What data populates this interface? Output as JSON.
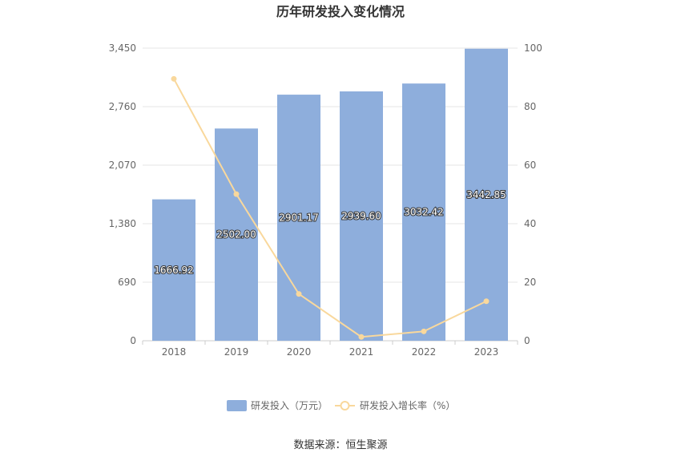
{
  "chart_data": {
    "type": "bar",
    "title": "历年研发投入变化情况",
    "categories": [
      "2018",
      "2019",
      "2020",
      "2021",
      "2022",
      "2023"
    ],
    "series": [
      {
        "name": "研发投入（万元）",
        "type": "bar",
        "axis": "left",
        "color": "#8eaedc",
        "values": [
          1666.92,
          2502.0,
          2901.17,
          2939.6,
          3032.42,
          3442.85
        ],
        "labels": [
          "1666.92",
          "2502.00",
          "2901.17",
          "2939.60",
          "3032.42",
          "3442.85"
        ]
      },
      {
        "name": "研发投入增长率（%）",
        "type": "line",
        "axis": "right",
        "color": "#f9d89c",
        "values": [
          89.5,
          50.1,
          16.0,
          1.3,
          3.2,
          13.5
        ]
      }
    ],
    "y_left": {
      "min": 0,
      "max": 3450,
      "ticks": [
        "0",
        "690",
        "1,380",
        "2,070",
        "2,760",
        "3,450"
      ]
    },
    "y_right": {
      "min": 0,
      "max": 100,
      "ticks": [
        "0",
        "20",
        "40",
        "60",
        "80",
        "100"
      ]
    },
    "grid": true,
    "legend_position": "bottom"
  },
  "source": "数据来源：恒生聚源"
}
